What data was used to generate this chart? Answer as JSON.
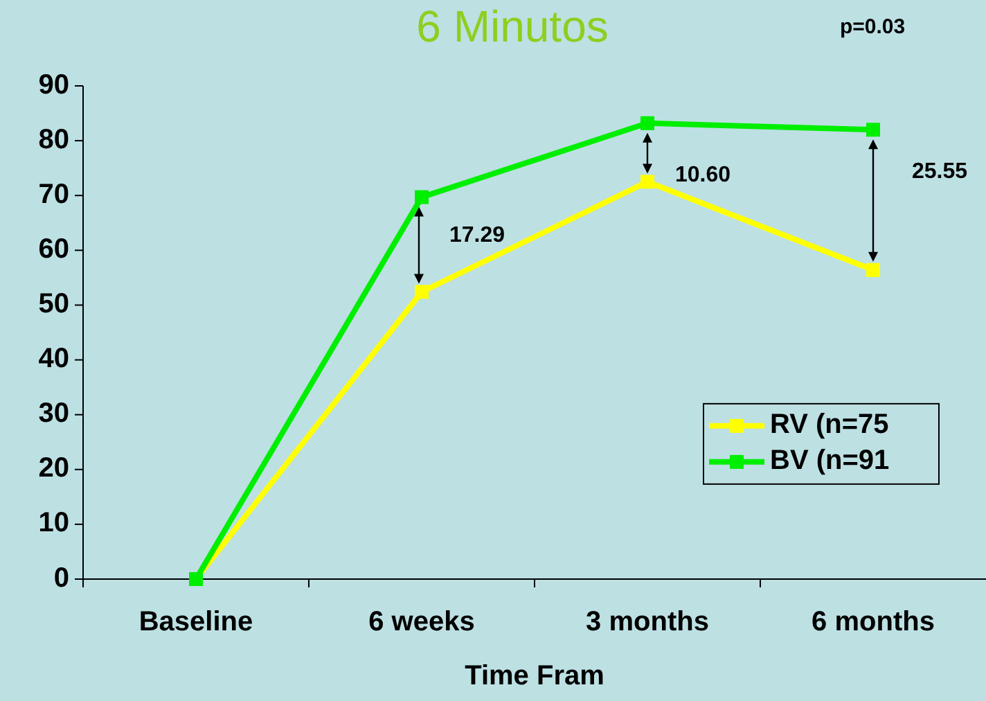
{
  "chart_data": {
    "type": "line",
    "title": "6 Minutos",
    "xlabel": "Time Fram",
    "categories": [
      "Baseline",
      "6 weeks",
      "3 months",
      "6 months"
    ],
    "series": [
      {
        "name": "RV (n=75",
        "color": "#ffff00",
        "values": [
          0,
          52.4,
          72.5,
          56.4
        ]
      },
      {
        "name": "BV (n=91",
        "color": "#00ee00",
        "values": [
          0,
          69.7,
          83.2,
          82.0
        ]
      }
    ],
    "ylim": [
      0,
      90
    ],
    "yticks": [
      0,
      10,
      20,
      30,
      40,
      50,
      60,
      70,
      80,
      90
    ],
    "grid": false,
    "legend": "bottom right",
    "marker": "square",
    "line_style": "solid",
    "annotations": [
      "17.29",
      "10.60",
      "25.55",
      "p=0.03"
    ]
  }
}
